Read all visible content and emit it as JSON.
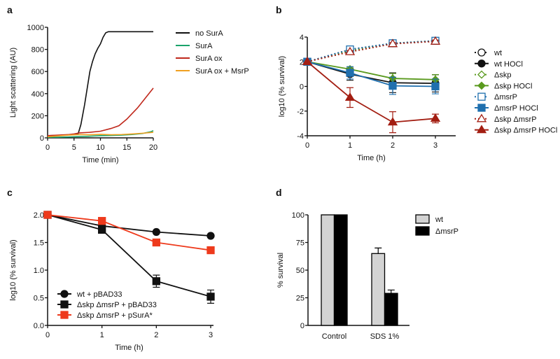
{
  "chart_data": [
    {
      "panel": "a",
      "type": "line",
      "xlabel": "Time (min)",
      "ylabel": "Light scattering (AU)",
      "xlim": [
        0,
        20
      ],
      "ylim": [
        0,
        1000
      ],
      "xticks": [
        "0",
        "5",
        "10",
        "15",
        "20"
      ],
      "yticks": [
        "0",
        "200",
        "400",
        "600",
        "800",
        "1000"
      ],
      "legend_placement": "right",
      "series": [
        {
          "name": "no SurA",
          "color": "#111111",
          "x": [
            0,
            2,
            4,
            5,
            5.8,
            6.3,
            7,
            7.5,
            8,
            8.5,
            9,
            9.5,
            10,
            10.5,
            11,
            11.5,
            20
          ],
          "y": [
            20,
            22,
            28,
            32,
            40,
            120,
            300,
            450,
            600,
            690,
            760,
            810,
            850,
            910,
            950,
            960,
            960
          ]
        },
        {
          "name": "SurA",
          "color": "#1aa36b",
          "x": [
            0,
            2,
            4,
            6,
            8,
            10,
            12,
            14,
            16,
            18,
            19.5,
            20
          ],
          "y": [
            5,
            6,
            8,
            12,
            15,
            20,
            22,
            25,
            30,
            40,
            55,
            65
          ]
        },
        {
          "name": "SurA ox",
          "color": "#c0281c",
          "x": [
            0,
            2,
            4,
            5,
            6,
            8,
            10,
            12,
            13.5,
            15,
            16,
            17,
            18,
            19,
            20
          ],
          "y": [
            20,
            25,
            30,
            35,
            45,
            50,
            60,
            85,
            110,
            170,
            220,
            270,
            330,
            390,
            450
          ]
        },
        {
          "name": "SurA ox + MsrP",
          "color": "#f0a020",
          "x": [
            0,
            2,
            4,
            6,
            8,
            10,
            12,
            14,
            16,
            18,
            20
          ],
          "y": [
            10,
            18,
            25,
            30,
            28,
            32,
            28,
            30,
            35,
            42,
            50
          ]
        }
      ]
    },
    {
      "panel": "b",
      "type": "line",
      "xlabel": "Time (h)",
      "ylabel": "log10 (% survival)",
      "xlim": [
        0,
        3
      ],
      "ylim": [
        -4,
        4
      ],
      "xticks": [
        "0",
        "1",
        "2",
        "3"
      ],
      "yticks": [
        "-4",
        "-2",
        "0",
        "2",
        "4"
      ],
      "legend_placement": "right",
      "series": [
        {
          "name": "wt",
          "color": "#111111",
          "marker": "circle-open",
          "dashed": true,
          "x": [
            0,
            1,
            2,
            3
          ],
          "y": [
            2,
            3.0,
            3.5,
            3.7
          ],
          "err": [
            0,
            0.1,
            0.1,
            0.1
          ]
        },
        {
          "name": "wt HOCl",
          "color": "#111111",
          "marker": "circle",
          "dashed": false,
          "x": [
            0,
            1,
            2,
            3
          ],
          "y": [
            2,
            1.0,
            0.3,
            0.25
          ],
          "err": [
            0,
            0.5,
            0.8,
            0.7
          ]
        },
        {
          "name": "Δskp",
          "color": "#5a9a1e",
          "marker": "diamond-open",
          "dashed": true,
          "x": [
            0,
            1,
            2,
            3
          ],
          "y": [
            2,
            2.9,
            3.5,
            3.7
          ],
          "err": [
            0,
            0.1,
            0.1,
            0.1
          ]
        },
        {
          "name": "Δskp HOCl",
          "color": "#5a9a1e",
          "marker": "diamond",
          "dashed": false,
          "x": [
            0,
            1,
            2,
            3
          ],
          "y": [
            2,
            1.4,
            0.65,
            0.55
          ],
          "err": [
            0,
            0.2,
            0.4,
            0.4
          ]
        },
        {
          "name": "ΔmsrP",
          "color": "#1f6fae",
          "marker": "square-open",
          "dashed": true,
          "x": [
            0,
            1,
            2,
            3
          ],
          "y": [
            2,
            3.0,
            3.5,
            3.7
          ],
          "err": [
            0,
            0.15,
            0.1,
            0.1
          ]
        },
        {
          "name": "ΔmsrP HOCl",
          "color": "#1f6fae",
          "marker": "square",
          "dashed": false,
          "x": [
            0,
            1,
            2,
            3
          ],
          "y": [
            2,
            1.1,
            0.05,
            0.0
          ],
          "err": [
            0,
            0.5,
            0.7,
            0.6
          ]
        },
        {
          "name": "Δskp ΔmsrP",
          "color": "#a31e12",
          "marker": "triangle-open",
          "dashed": true,
          "x": [
            0,
            1,
            2,
            3
          ],
          "y": [
            2,
            2.8,
            3.45,
            3.65
          ],
          "err": [
            0,
            0.1,
            0.1,
            0.1
          ]
        },
        {
          "name": "Δskp ΔmsrP HOCl",
          "color": "#a31e12",
          "marker": "triangle",
          "dashed": false,
          "x": [
            0,
            1,
            2,
            3
          ],
          "y": [
            2,
            -0.9,
            -2.9,
            -2.6
          ],
          "err": [
            0,
            0.8,
            0.85,
            0.35
          ]
        }
      ]
    },
    {
      "panel": "c",
      "type": "line",
      "xlabel": "Time (h)",
      "ylabel": "log10 (% survival)",
      "xlim": [
        0,
        3
      ],
      "ylim": [
        0,
        2
      ],
      "xticks": [
        "0",
        "1",
        "2",
        "3"
      ],
      "yticks": [
        "0.0",
        "0.5",
        "1.0",
        "1.5",
        "2.0"
      ],
      "legend_placement": "bottom-left",
      "series": [
        {
          "name": "wt + pBAD33",
          "color": "#111111",
          "marker": "circle",
          "x": [
            0,
            1,
            2,
            3
          ],
          "y": [
            2.0,
            1.8,
            1.69,
            1.62
          ],
          "err": [
            0,
            0.01,
            0.02,
            0.02
          ]
        },
        {
          "name": "Δskp ΔmsrP + pBAD33",
          "color": "#111111",
          "marker": "square",
          "x": [
            0,
            1,
            2,
            3
          ],
          "y": [
            2.0,
            1.73,
            0.8,
            0.52
          ],
          "err": [
            0,
            0.02,
            0.11,
            0.12
          ]
        },
        {
          "name": "Δskp ΔmsrP + pSurA*",
          "color": "#ee3a1c",
          "marker": "square",
          "x": [
            0,
            1,
            2,
            3
          ],
          "y": [
            2.0,
            1.89,
            1.5,
            1.36
          ],
          "err": [
            0,
            0.02,
            0.06,
            0.04
          ]
        }
      ]
    },
    {
      "panel": "d",
      "type": "bar",
      "ylabel": "% survival",
      "ylim": [
        0,
        100
      ],
      "yticks": [
        "0",
        "25",
        "50",
        "75",
        "100"
      ],
      "categories": [
        "Control",
        "SDS 1%"
      ],
      "legend_placement": "top-right",
      "series": [
        {
          "name": "wt",
          "color": "#d3d3d3",
          "values": [
            100,
            65
          ],
          "err": [
            0,
            5
          ]
        },
        {
          "name": "ΔmsrP",
          "color": "#000000",
          "values": [
            100,
            29
          ],
          "err": [
            0,
            3
          ]
        }
      ]
    }
  ]
}
